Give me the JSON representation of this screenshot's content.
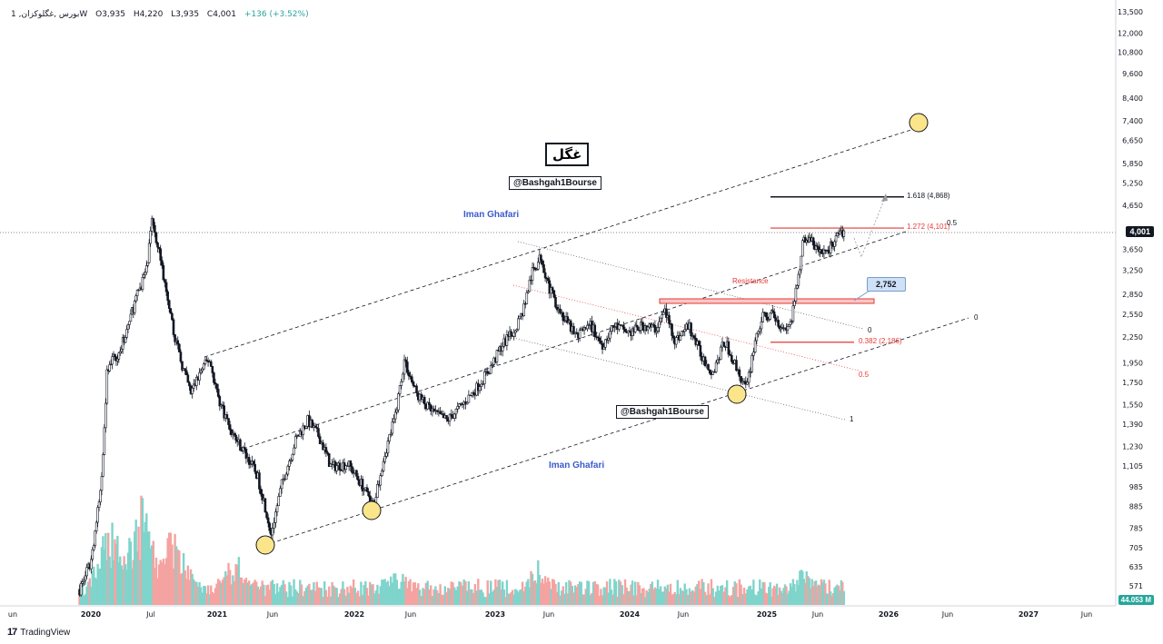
{
  "header": {
    "symbol": "1 ,بورس ,غگلوکزانW",
    "open": "O3,935",
    "high": "H4,220",
    "low": "L3,935",
    "close": "C4,001",
    "change": "+136 (+3.52%)"
  },
  "branding": {
    "logo_mark": "17",
    "logo_text": "TradingView"
  },
  "price_tag": "4,001",
  "volume_tag": "44.053 M",
  "title_label": "غگل",
  "handles": [
    "@Bashgah1Bourse",
    "@Bashgah1Bourse"
  ],
  "authors": [
    "Iman Ghafari",
    "Iman Ghafari"
  ],
  "callout": "2,752",
  "annotations": {
    "fib_1618": "1.618 (4,868)",
    "fib_1272": "1.272 (4,101)",
    "fib_05_top": "0.5",
    "resistance": "Resistance",
    "fib_0382": "0.382 (2,186)",
    "channel_0_mid": "0",
    "channel_05": "0.5",
    "channel_1": "1",
    "channel_0_right": "0"
  },
  "colors": {
    "up": "#26a69a",
    "down": "#ef5350",
    "candle": "#131722",
    "author": "#3b5bcc",
    "resistance": "#e53935",
    "marker_fill": "#fbe58a",
    "callout_bg": "#cfe1f7"
  },
  "chart_data": {
    "type": "candlestick",
    "y_scale": "log",
    "ylim": [
      500,
      13500
    ],
    "price_ticks": [
      13500,
      12000,
      10800,
      9600,
      8400,
      7400,
      6650,
      5850,
      5250,
      4650,
      4001,
      3650,
      3250,
      2850,
      2550,
      2250,
      1950,
      1750,
      1550,
      1390,
      1230,
      1105,
      985,
      885,
      785,
      705,
      635,
      571
    ],
    "price_tick_labels": [
      "13,500",
      "12,000",
      "10,800",
      "9,600",
      "8,400",
      "7,400",
      "6,650",
      "5,850",
      "5,250",
      "4,650",
      "4,001",
      "3,650",
      "3,250",
      "2,850",
      "2,550",
      "2,250",
      "1,950",
      "1,750",
      "1,550",
      "1,390",
      "1,230",
      "1,105",
      "985",
      "885",
      "785",
      "705",
      "635",
      "571"
    ],
    "time_labels": [
      "un",
      "2020",
      "Jul",
      "2021",
      "Jun",
      "2022",
      "Jun",
      "2023",
      "Jun",
      "2024",
      "Jun",
      "2025",
      "Jun",
      "2026",
      "Jun",
      "2027",
      "Jun"
    ],
    "time_label_dates": [
      "2019-06-01",
      "2020-01-01",
      "2020-07-01",
      "2021-01-01",
      "2021-06-01",
      "2022-01-01",
      "2022-06-01",
      "2023-01-01",
      "2023-06-01",
      "2024-01-01",
      "2024-06-01",
      "2025-01-01",
      "2025-06-01",
      "2026-01-01",
      "2026-06-01",
      "2027-01-01",
      "2027-06-01"
    ],
    "close_path": [
      [
        "2019-12-01",
        560
      ],
      [
        "2020-01-01",
        650
      ],
      [
        "2020-02-01",
        980
      ],
      [
        "2020-02-20",
        1900
      ],
      [
        "2020-04-01",
        2100
      ],
      [
        "2020-05-15",
        2750
      ],
      [
        "2020-06-20",
        3300
      ],
      [
        "2020-07-05",
        4300
      ],
      [
        "2020-07-25",
        3600
      ],
      [
        "2020-08-20",
        2600
      ],
      [
        "2020-09-20",
        2000
      ],
      [
        "2020-10-20",
        1650
      ],
      [
        "2020-11-15",
        1850
      ],
      [
        "2020-12-10",
        2000
      ],
      [
        "2021-01-05",
        1600
      ],
      [
        "2021-02-10",
        1330
      ],
      [
        "2021-03-20",
        1180
      ],
      [
        "2021-04-20",
        1050
      ],
      [
        "2021-05-10",
        900
      ],
      [
        "2021-05-28",
        760
      ],
      [
        "2021-06-25",
        1000
      ],
      [
        "2021-08-01",
        1280
      ],
      [
        "2021-09-01",
        1420
      ],
      [
        "2021-10-01",
        1300
      ],
      [
        "2021-11-01",
        1100
      ],
      [
        "2021-12-15",
        1120
      ],
      [
        "2022-01-20",
        1000
      ],
      [
        "2022-02-20",
        880
      ],
      [
        "2022-03-20",
        1150
      ],
      [
        "2022-04-20",
        1450
      ],
      [
        "2022-05-15",
        1980
      ],
      [
        "2022-06-15",
        1650
      ],
      [
        "2022-07-20",
        1500
      ],
      [
        "2022-09-01",
        1420
      ],
      [
        "2022-10-10",
        1550
      ],
      [
        "2022-11-15",
        1700
      ],
      [
        "2022-12-20",
        1900
      ],
      [
        "2023-01-20",
        2150
      ],
      [
        "2023-02-20",
        2300
      ],
      [
        "2023-03-20",
        2600
      ],
      [
        "2023-04-15",
        3200
      ],
      [
        "2023-05-10",
        3500
      ],
      [
        "2023-06-05",
        2900
      ],
      [
        "2023-07-10",
        2500
      ],
      [
        "2023-08-15",
        2250
      ],
      [
        "2023-09-20",
        2400
      ],
      [
        "2023-10-20",
        2150
      ],
      [
        "2023-11-20",
        2400
      ],
      [
        "2024-01-01",
        2300
      ],
      [
        "2024-02-10",
        2400
      ],
      [
        "2024-03-15",
        2350
      ],
      [
        "2024-04-10",
        2600
      ],
      [
        "2024-05-10",
        2200
      ],
      [
        "2024-06-15",
        2400
      ],
      [
        "2024-07-15",
        2050
      ],
      [
        "2024-08-15",
        1850
      ],
      [
        "2024-09-15",
        2200
      ],
      [
        "2024-10-15",
        1900
      ],
      [
        "2024-11-10",
        1680
      ],
      [
        "2024-12-01",
        2200
      ],
      [
        "2024-12-20",
        2500
      ],
      [
        "2025-01-20",
        2550
      ],
      [
        "2025-02-20",
        2350
      ],
      [
        "2025-03-15",
        2450
      ],
      [
        "2025-04-01",
        3000
      ],
      [
        "2025-04-20",
        3900
      ],
      [
        "2025-05-15",
        3800
      ],
      [
        "2025-06-10",
        3550
      ],
      [
        "2025-07-10",
        3700
      ],
      [
        "2025-08-01",
        3900
      ],
      [
        "2025-08-20",
        4001
      ]
    ],
    "volume_peaks": [
      [
        "2020-03-01",
        0.6
      ],
      [
        "2020-06-01",
        0.75
      ],
      [
        "2020-09-01",
        0.55
      ],
      [
        "2021-03-01",
        0.4
      ],
      [
        "2022-05-01",
        0.25
      ],
      [
        "2023-05-01",
        0.3
      ],
      [
        "2025-04-20",
        0.28
      ]
    ],
    "levels": {
      "fib_1618": 4868,
      "fib_1272": 4101,
      "fib_0382": 2186,
      "resistance": 2752
    }
  }
}
